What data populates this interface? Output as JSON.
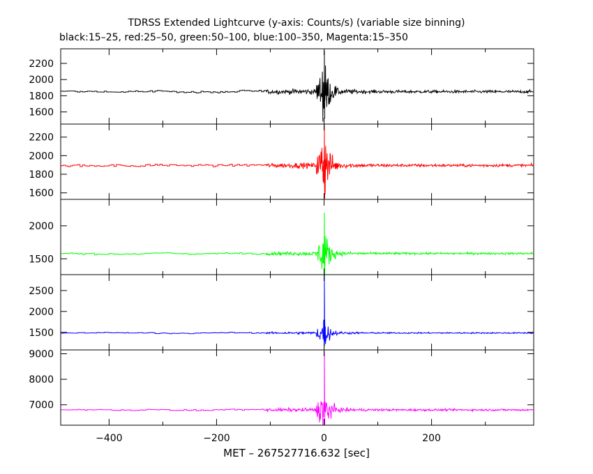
{
  "chart_data": {
    "type": "line",
    "title": "TDRSS Extended Lightcurve (y-axis: Counts/s) (variable size binning)",
    "subtitle": "black:15–25, red:25–50, green:50–100, blue:100–350, Magenta:15–350",
    "xlabel": "MET – 267527716.632 [sec]",
    "xlim": [
      -490,
      390
    ],
    "xticks": [
      -400,
      -200,
      0,
      200
    ],
    "xtick_labels": [
      "−400",
      "−200",
      "0",
      "200"
    ],
    "grid": false,
    "panels": [
      {
        "name": "15–25",
        "color": "#000000",
        "ylim": [
          1450,
          2380
        ],
        "yticks": [
          1600,
          1800,
          2000,
          2200
        ],
        "baseline": 1850,
        "pre_noise": 12,
        "post_noise": 25,
        "burst_amp": 500,
        "burst_peak": 2360,
        "burst_min": 1520
      },
      {
        "name": "25–50",
        "color": "#ff0000",
        "ylim": [
          1530,
          2340
        ],
        "yticks": [
          1600,
          1800,
          2000,
          2200
        ],
        "baseline": 1895,
        "pre_noise": 12,
        "post_noise": 22,
        "burst_amp": 480,
        "burst_peak": 2330,
        "burst_min": 1540
      },
      {
        "name": "50–100",
        "color": "#00ff00",
        "ylim": [
          1260,
          2400
        ],
        "yticks": [
          1500,
          2000
        ],
        "baseline": 1580,
        "pre_noise": 10,
        "post_noise": 22,
        "burst_amp": 480,
        "burst_peak": 2200,
        "burst_min": 1300
      },
      {
        "name": "100–350",
        "color": "#0000ff",
        "ylim": [
          1080,
          2880
        ],
        "yticks": [
          1500,
          2000,
          2500
        ],
        "baseline": 1485,
        "pre_noise": 12,
        "post_noise": 22,
        "burst_amp": 500,
        "burst_peak": 2870,
        "burst_min": 1280
      },
      {
        "name": "15–350",
        "color": "#ff00ff",
        "ylim": [
          6200,
          9150
        ],
        "yticks": [
          7000,
          8000,
          9000
        ],
        "baseline": 6800,
        "pre_noise": 25,
        "post_noise": 55,
        "burst_amp": 1100,
        "burst_peak": 9100,
        "burst_min": 6220
      }
    ]
  }
}
